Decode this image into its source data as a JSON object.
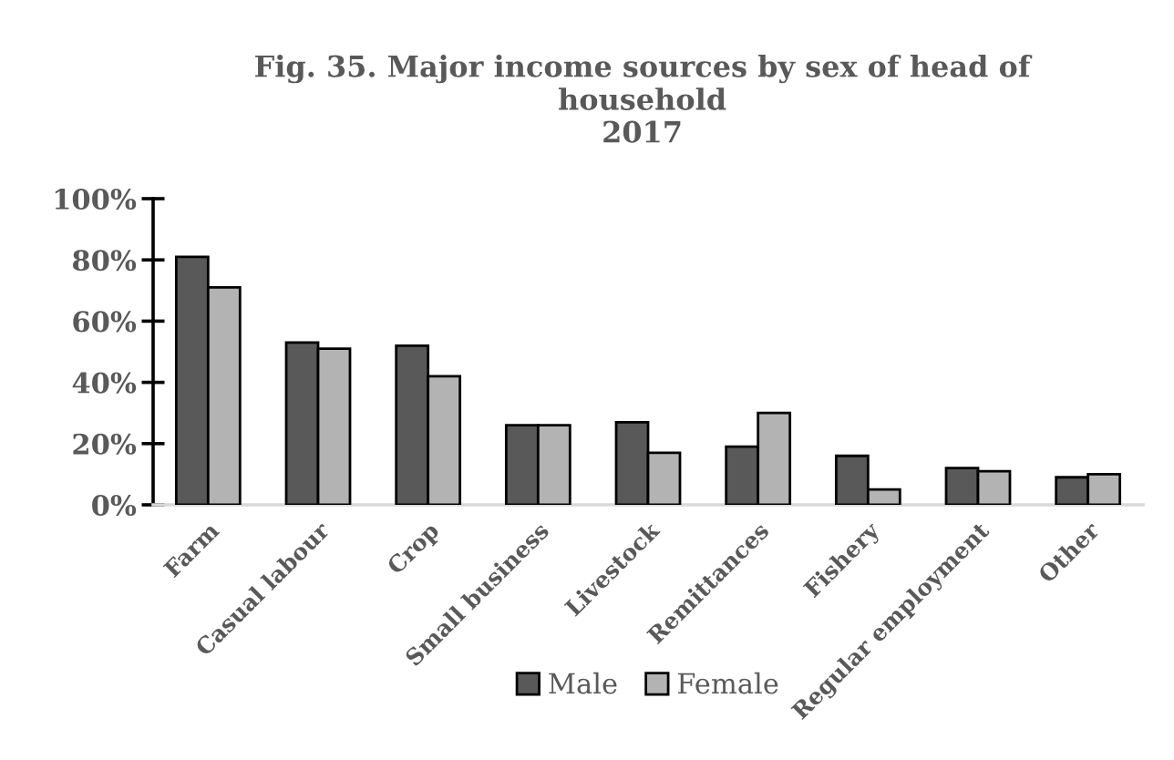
{
  "chart_data": {
    "type": "bar",
    "title": "Fig. 35. Major income sources by sex of head of\nhousehold\n2017",
    "categories": [
      "Farm",
      "Casual labour",
      "Crop",
      "Small business",
      "Livestock",
      "Remittances",
      "Fishery",
      "Regular employment",
      "Other"
    ],
    "series": [
      {
        "name": "Male",
        "color": "#595959",
        "values": [
          81,
          53,
          52,
          26,
          27,
          19,
          16,
          12,
          9
        ]
      },
      {
        "name": "Female",
        "color": "#b3b3b3",
        "values": [
          71,
          51,
          42,
          26,
          17,
          30,
          5,
          11,
          10
        ]
      }
    ],
    "ylim": [
      0,
      100
    ],
    "yticks": [
      {
        "value": 0,
        "label": "0%"
      },
      {
        "value": 20,
        "label": "20%"
      },
      {
        "value": 40,
        "label": "40%"
      },
      {
        "value": 60,
        "label": "60%"
      },
      {
        "value": 80,
        "label": "80%"
      },
      {
        "value": 100,
        "label": "100%"
      }
    ],
    "grid": false,
    "legend": "bottom"
  }
}
